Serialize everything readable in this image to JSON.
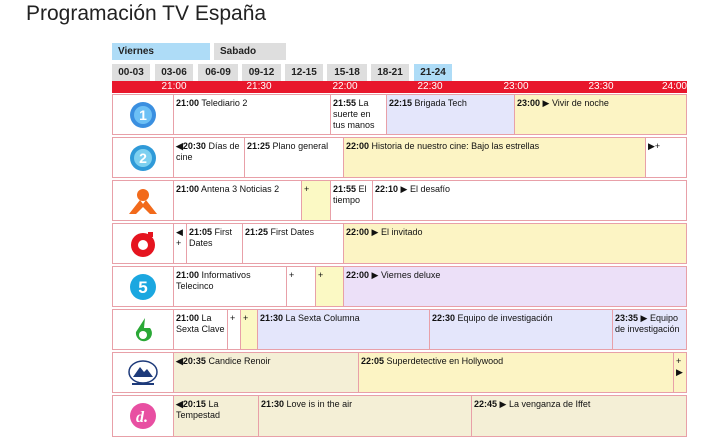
{
  "page": {
    "title": "Programación TV España"
  },
  "days": [
    {
      "label": "Viernes",
      "active": true
    },
    {
      "label": "Sabado",
      "active": false
    }
  ],
  "time_ranges": [
    "00-03",
    "03-06",
    "06-09",
    "09-12",
    "12-15",
    "15-18",
    "18-21",
    "21-24"
  ],
  "timeline": [
    "21:00",
    "21:30",
    "22:00",
    "22:30",
    "23:00",
    "23:30",
    "24:00"
  ],
  "channels": [
    {
      "name": "La 1",
      "icon": "la1-logo-icon",
      "programs": [
        {
          "time": "21:00",
          "title": "Telediario 2"
        },
        {
          "time": "21:55",
          "title": "La suerte en tus manos"
        },
        {
          "time": "22:15",
          "title": "Brigada Tech"
        },
        {
          "time": "23:00",
          "title": "▶ Vivir de noche"
        }
      ]
    },
    {
      "name": "La 2",
      "icon": "la2-logo-icon",
      "programs": [
        {
          "time": "◀20:30",
          "title": "Días de cine"
        },
        {
          "time": "21:25",
          "title": "Plano general"
        },
        {
          "time": "22:00",
          "title": "Historia de nuestro cine: Bajo las estrellas"
        },
        {
          "time": "",
          "title": "▶+"
        }
      ]
    },
    {
      "name": "Antena 3",
      "icon": "antena3-logo-icon",
      "programs": [
        {
          "time": "21:00",
          "title": "Antena 3 Noticias 2"
        },
        {
          "time": "",
          "title": "+"
        },
        {
          "time": "21:55",
          "title": "El tiempo"
        },
        {
          "time": "22:10",
          "title": "▶ El desafío"
        }
      ]
    },
    {
      "name": "Cuatro",
      "icon": "cuatro-logo-icon",
      "programs": [
        {
          "time": "",
          "title": "◀ +"
        },
        {
          "time": "21:05",
          "title": "First Dates"
        },
        {
          "time": "21:25",
          "title": "First Dates"
        },
        {
          "time": "22:00",
          "title": "▶ El invitado"
        }
      ]
    },
    {
      "name": "Telecinco",
      "icon": "telecinco-logo-icon",
      "programs": [
        {
          "time": "21:00",
          "title": "Informativos Telecinco"
        },
        {
          "time": "",
          "title": "+"
        },
        {
          "time": "",
          "title": "+"
        },
        {
          "time": "22:00",
          "title": "▶ Viernes deluxe"
        }
      ]
    },
    {
      "name": "La Sexta",
      "icon": "lasexta-logo-icon",
      "programs": [
        {
          "time": "21:00",
          "title": "La Sexta Clave"
        },
        {
          "time": "",
          "title": "+"
        },
        {
          "time": "",
          "title": "+"
        },
        {
          "time": "21:30",
          "title": "La Sexta Columna"
        },
        {
          "time": "22:30",
          "title": "Equipo de investigación"
        },
        {
          "time": "23:35",
          "title": "▶ Equipo de investigación"
        }
      ]
    },
    {
      "name": "Paramount Network",
      "icon": "paramount-logo-icon",
      "programs": [
        {
          "time": "◀20:35",
          "title": "Candice Renoir"
        },
        {
          "time": "22:05",
          "title": "Superdetective en Hollywood"
        },
        {
          "time": "",
          "title": "+ ▶"
        }
      ]
    },
    {
      "name": "Divinity",
      "icon": "divinity-logo-icon",
      "programs": [
        {
          "time": "◀20:15",
          "title": "La Tempestad"
        },
        {
          "time": "21:30",
          "title": "Love is in the air"
        },
        {
          "time": "22:45",
          "title": "▶ La venganza de Iffet"
        }
      ]
    }
  ],
  "colors": {
    "accent_red": "#e8172c",
    "active_day": "#aedcf7",
    "active_range": "#aedcf7"
  }
}
